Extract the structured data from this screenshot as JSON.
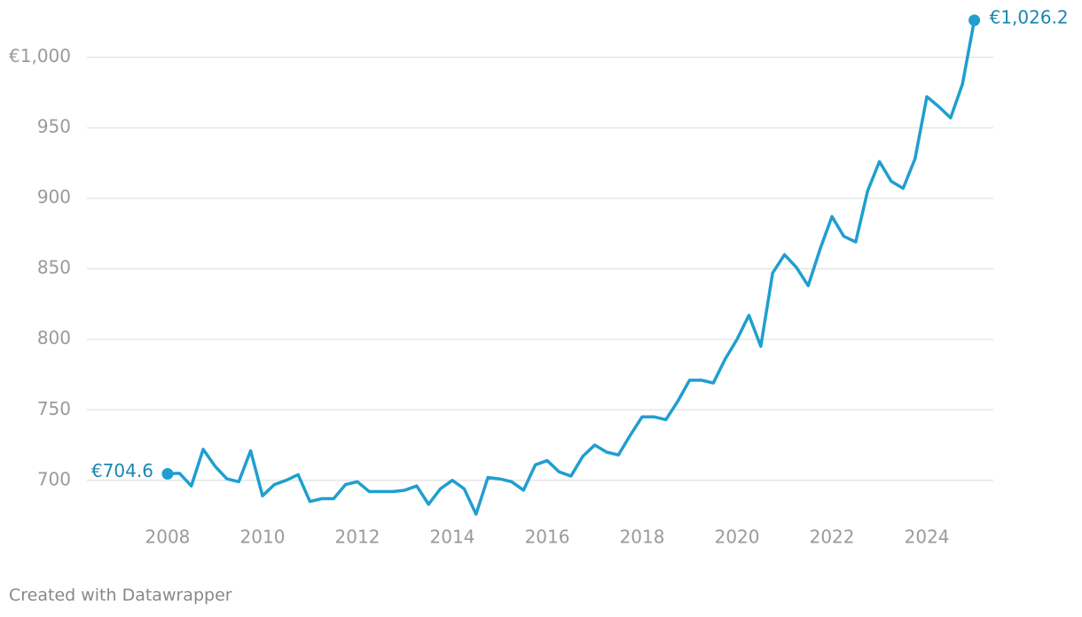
{
  "chart_data": {
    "type": "line",
    "x": [
      2008,
      2008.25,
      2008.5,
      2008.75,
      2009,
      2009.25,
      2009.5,
      2009.75,
      2010,
      2010.25,
      2010.5,
      2010.75,
      2011,
      2011.25,
      2011.5,
      2011.75,
      2012,
      2012.25,
      2012.5,
      2012.75,
      2013,
      2013.25,
      2013.5,
      2013.75,
      2014,
      2014.25,
      2014.5,
      2014.75,
      2015,
      2015.25,
      2015.5,
      2015.75,
      2016,
      2016.25,
      2016.5,
      2016.75,
      2017,
      2017.25,
      2017.5,
      2017.75,
      2018,
      2018.25,
      2018.5,
      2018.75,
      2019,
      2019.25,
      2019.5,
      2019.75,
      2020,
      2020.25,
      2020.5,
      2020.75,
      2021,
      2021.25,
      2021.5,
      2021.75,
      2022,
      2022.25,
      2022.5,
      2022.75,
      2023,
      2023.25,
      2023.5,
      2023.75,
      2024,
      2024.25,
      2024.5,
      2024.75,
      2025
    ],
    "series": [
      {
        "color": "#1f9fcf",
        "values": [
          704.6,
          705,
          696,
          722,
          710,
          701,
          699,
          721,
          689,
          697,
          700,
          704,
          685,
          687,
          687,
          697,
          699,
          692,
          692,
          692,
          693,
          696,
          683,
          694,
          700,
          694,
          676,
          702,
          701,
          699,
          693,
          711,
          714,
          706,
          703,
          717,
          725,
          720,
          718,
          732,
          745,
          745,
          743,
          756,
          771,
          771,
          769,
          786,
          800,
          817,
          795,
          847,
          860,
          851,
          838,
          864,
          887,
          873,
          869,
          905,
          926,
          912,
          907,
          928,
          972,
          965,
          957,
          981,
          1026.2
        ],
        "value_labels": [
          "€704.6",
          null,
          null,
          null,
          null,
          null,
          null,
          null,
          null,
          null,
          null,
          null,
          null,
          null,
          null,
          null,
          null,
          null,
          null,
          null,
          null,
          null,
          null,
          null,
          null,
          null,
          null,
          null,
          null,
          null,
          null,
          null,
          null,
          null,
          null,
          null,
          null,
          null,
          null,
          null,
          null,
          null,
          null,
          null,
          null,
          null,
          null,
          null,
          null,
          null,
          null,
          null,
          null,
          null,
          null,
          null,
          null,
          null,
          null,
          null,
          null,
          null,
          null,
          null,
          null,
          null,
          null,
          null,
          "€1,026.2"
        ]
      }
    ],
    "xlim": [
      2006.3,
      2025.4
    ],
    "xticks": [
      2008,
      2010,
      2012,
      2014,
      2016,
      2018,
      2020,
      2022,
      2024
    ],
    "ylim": [
      676,
      1028
    ],
    "yticks": [
      700,
      750,
      800,
      850,
      900,
      950,
      {
        "value": 1000,
        "label": "€1,000"
      }
    ],
    "grid": true,
    "source": "Created with Datawrapper"
  }
}
